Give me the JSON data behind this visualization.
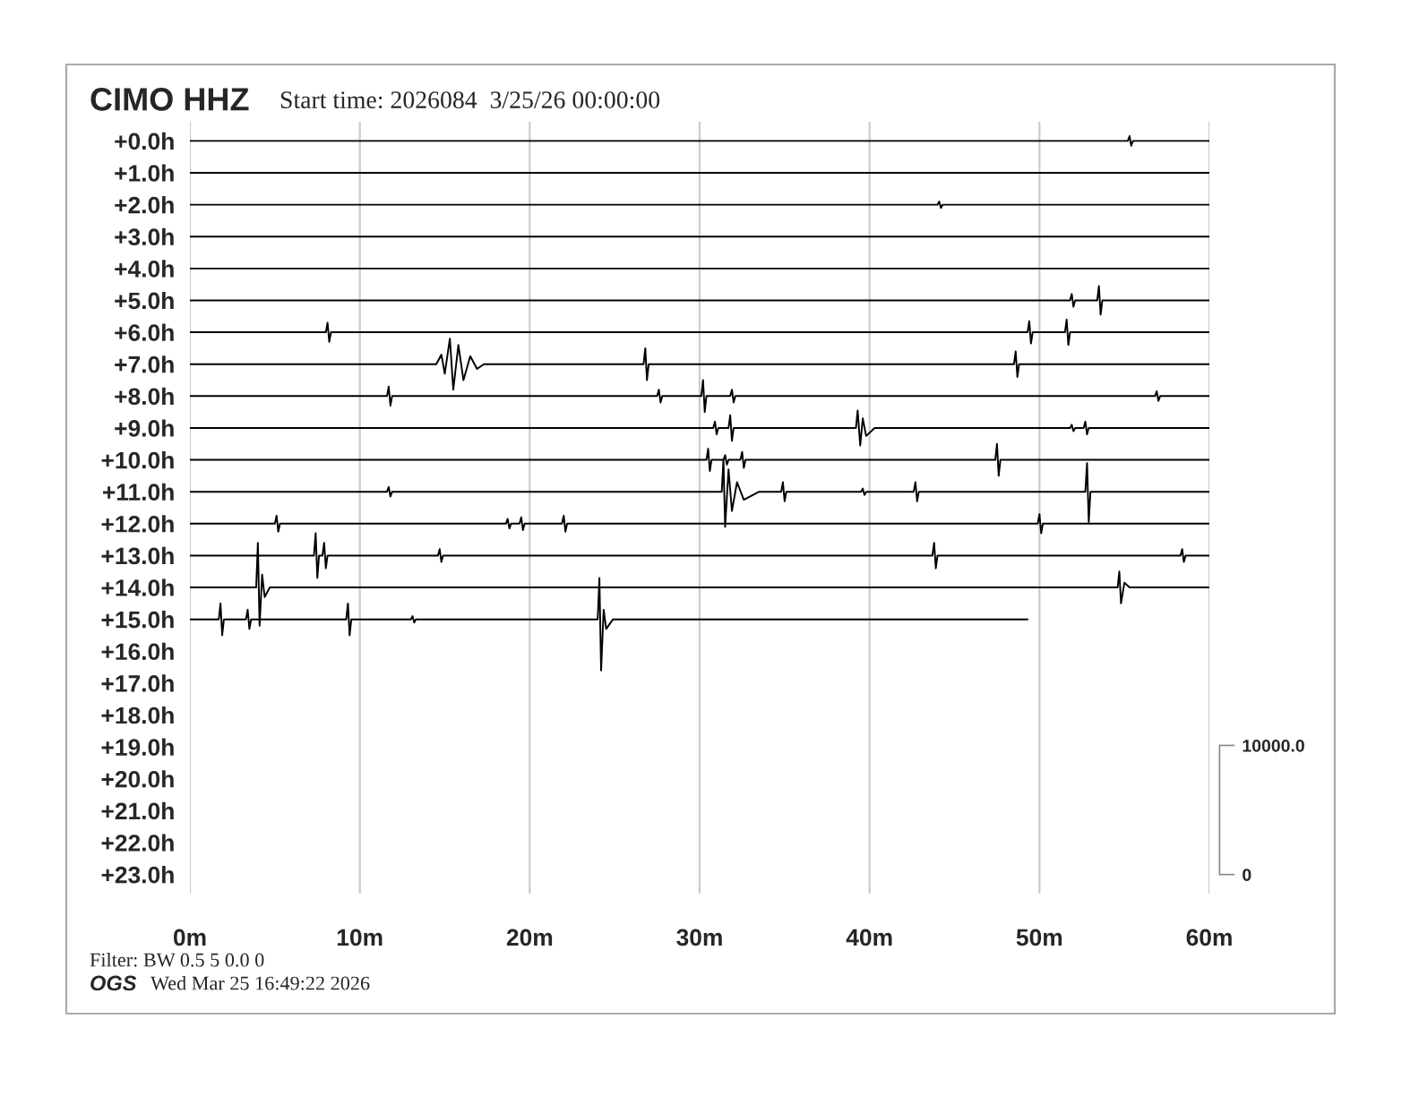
{
  "chart_data": {
    "type": "line",
    "title": "CIMO HHZ",
    "subtitle": "Start time: 2026084  3/25/26 00:00:00",
    "annotations": [
      "Filter: BW 0.5 5 0.0 0",
      "OGS",
      "Wed Mar 25 16:49:22 2026"
    ],
    "xlim": [
      0,
      60
    ],
    "xticks": [
      {
        "value": 0,
        "label": "0m"
      },
      {
        "value": 10,
        "label": "10m"
      },
      {
        "value": 20,
        "label": "20m"
      },
      {
        "value": 30,
        "label": "30m"
      },
      {
        "value": 40,
        "label": "40m"
      },
      {
        "value": 50,
        "label": "50m"
      },
      {
        "value": 60,
        "label": "60m"
      }
    ],
    "ylim": [
      23.6,
      -0.6
    ],
    "yticks": [
      {
        "value": 0,
        "label": "+0.0h"
      },
      {
        "value": 1,
        "label": "+1.0h"
      },
      {
        "value": 2,
        "label": "+2.0h"
      },
      {
        "value": 3,
        "label": "+3.0h"
      },
      {
        "value": 4,
        "label": "+4.0h"
      },
      {
        "value": 5,
        "label": "+5.0h"
      },
      {
        "value": 6,
        "label": "+6.0h"
      },
      {
        "value": 7,
        "label": "+7.0h"
      },
      {
        "value": 8,
        "label": "+8.0h"
      },
      {
        "value": 9,
        "label": "+9.0h"
      },
      {
        "value": 10,
        "label": "+10.0h"
      },
      {
        "value": 11,
        "label": "+11.0h"
      },
      {
        "value": 12,
        "label": "+12.0h"
      },
      {
        "value": 13,
        "label": "+13.0h"
      },
      {
        "value": 14,
        "label": "+14.0h"
      },
      {
        "value": 15,
        "label": "+15.0h"
      },
      {
        "value": 16,
        "label": "+16.0h"
      },
      {
        "value": 17,
        "label": "+17.0h"
      },
      {
        "value": 18,
        "label": "+18.0h"
      },
      {
        "value": 19,
        "label": "+19.0h"
      },
      {
        "value": 20,
        "label": "+20.0h"
      },
      {
        "value": 21,
        "label": "+21.0h"
      },
      {
        "value": 22,
        "label": "+22.0h"
      },
      {
        "value": 23,
        "label": "+23.0h"
      }
    ],
    "y2lim": [
      -1480,
      58300
    ],
    "y2ticks": [
      0,
      {
        "value": 10000,
        "label": "10000.0"
      }
    ],
    "grid": "x",
    "series": [
      {
        "color": "#000000",
        "x": [
          0,
          55.2,
          55.3,
          55.4,
          55.5,
          60
        ],
        "values": [
          0,
          0,
          -0.15,
          0.15,
          0,
          0
        ]
      },
      {
        "color": "#000000",
        "x": [
          0,
          60
        ],
        "values": [
          1,
          1
        ]
      },
      {
        "color": "#000000",
        "x": [
          0,
          44.0,
          44.1,
          44.2,
          44.3,
          60
        ],
        "values": [
          2,
          2,
          1.9,
          2.1,
          2,
          2
        ]
      },
      {
        "color": "#000000",
        "x": [
          0,
          60
        ],
        "values": [
          3,
          3
        ]
      },
      {
        "color": "#000000",
        "x": [
          0,
          60
        ],
        "values": [
          4,
          4
        ]
      },
      {
        "color": "#000000",
        "x": [
          0,
          51.8,
          51.9,
          52.0,
          52.1,
          53.4,
          53.5,
          53.6,
          53.7,
          60
        ],
        "values": [
          5,
          5,
          4.8,
          5.2,
          5,
          5,
          4.55,
          5.45,
          5,
          5
        ]
      },
      {
        "color": "#000000",
        "x": [
          0,
          8.0,
          8.1,
          8.2,
          8.3,
          49.3,
          49.4,
          49.5,
          49.6,
          51.5,
          51.6,
          51.7,
          51.8,
          60
        ],
        "values": [
          6,
          6,
          5.7,
          6.3,
          6,
          6,
          5.65,
          6.35,
          6,
          6,
          5.6,
          6.4,
          6,
          6
        ]
      },
      {
        "color": "#000000",
        "x": [
          0,
          14.5,
          14.8,
          15.0,
          15.3,
          15.5,
          15.8,
          16.1,
          16.5,
          16.9,
          17.3,
          26.7,
          26.8,
          26.9,
          27.0,
          48.5,
          48.6,
          48.7,
          48.8,
          60
        ],
        "values": [
          7,
          7,
          6.7,
          7.3,
          6.2,
          7.8,
          6.4,
          7.5,
          6.75,
          7.15,
          7,
          7,
          6.5,
          7.5,
          7,
          7,
          6.6,
          7.4,
          7,
          7
        ]
      },
      {
        "color": "#000000",
        "x": [
          0,
          11.6,
          11.7,
          11.8,
          11.9,
          27.5,
          27.6,
          27.7,
          27.8,
          30.1,
          30.2,
          30.3,
          30.4,
          31.8,
          31.9,
          32.0,
          32.1,
          56.8,
          56.9,
          57.0,
          57.1,
          60
        ],
        "values": [
          8,
          8,
          7.7,
          8.3,
          8,
          8,
          7.8,
          8.2,
          8,
          8,
          7.5,
          8.5,
          8,
          8,
          7.8,
          8.2,
          8,
          8,
          7.85,
          8.15,
          8,
          8
        ]
      },
      {
        "color": "#000000",
        "x": [
          0,
          30.8,
          30.9,
          31.0,
          31.1,
          31.7,
          31.8,
          31.9,
          32.0,
          39.2,
          39.3,
          39.45,
          39.6,
          39.8,
          40.3,
          51.8,
          51.9,
          52.0,
          52.1,
          52.6,
          52.7,
          52.8,
          52.9,
          60
        ],
        "values": [
          9,
          9,
          8.8,
          9.2,
          9,
          9,
          8.6,
          9.4,
          9,
          9,
          8.45,
          9.55,
          8.7,
          9.25,
          9,
          9,
          8.9,
          9.1,
          9,
          9,
          8.8,
          9.2,
          9,
          9
        ]
      },
      {
        "color": "#000000",
        "x": [
          0,
          30.4,
          30.5,
          30.6,
          30.7,
          31.4,
          31.5,
          31.6,
          31.7,
          32.4,
          32.5,
          32.6,
          32.7,
          47.4,
          47.5,
          47.6,
          47.7,
          60
        ],
        "values": [
          10,
          10,
          9.65,
          10.35,
          10,
          10,
          9.85,
          10.15,
          10,
          10,
          9.75,
          10.25,
          10,
          10,
          9.5,
          10.5,
          10,
          10
        ]
      },
      {
        "color": "#000000",
        "x": [
          0,
          11.6,
          11.7,
          11.8,
          11.9,
          31.3,
          31.4,
          31.5,
          31.7,
          31.9,
          32.2,
          32.6,
          33.5,
          34.8,
          34.9,
          35.0,
          35.1,
          39.5,
          39.6,
          39.7,
          39.8,
          42.6,
          42.7,
          42.8,
          42.9,
          52.7,
          52.8,
          52.9,
          53.0,
          60
        ],
        "values": [
          11,
          11,
          10.85,
          11.15,
          11,
          11,
          10.0,
          12.1,
          10.3,
          11.6,
          10.7,
          11.25,
          11,
          11,
          10.7,
          11.3,
          11,
          11,
          10.9,
          11.1,
          11,
          11,
          10.7,
          11.3,
          11,
          11,
          10.1,
          11.95,
          11,
          11
        ]
      },
      {
        "color": "#000000",
        "x": [
          0,
          5.0,
          5.1,
          5.2,
          5.3,
          18.6,
          18.7,
          18.8,
          18.9,
          19.4,
          19.5,
          19.6,
          19.7,
          21.9,
          22.0,
          22.1,
          22.2,
          49.9,
          50.0,
          50.1,
          50.2,
          60
        ],
        "values": [
          12,
          12,
          11.75,
          12.25,
          12,
          12,
          11.85,
          12.15,
          12,
          12,
          11.8,
          12.2,
          12,
          12,
          11.75,
          12.25,
          12,
          12,
          11.7,
          12.3,
          12,
          12
        ]
      },
      {
        "color": "#000000",
        "x": [
          0,
          7.3,
          7.4,
          7.5,
          7.6,
          7.8,
          7.9,
          8.0,
          8.1,
          14.6,
          14.7,
          14.8,
          14.9,
          43.7,
          43.8,
          43.9,
          44.0,
          58.3,
          58.4,
          58.5,
          58.6,
          60
        ],
        "values": [
          13,
          13,
          12.3,
          13.7,
          13,
          13,
          12.6,
          13.4,
          13,
          13,
          12.8,
          13.2,
          13,
          13,
          12.6,
          13.4,
          13,
          13,
          12.8,
          13.2,
          13,
          13
        ]
      },
      {
        "color": "#000000",
        "x": [
          0,
          3.9,
          4.0,
          4.1,
          4.25,
          4.4,
          4.7,
          54.6,
          54.7,
          54.8,
          55.0,
          55.3,
          60
        ],
        "values": [
          14,
          14,
          12.6,
          15.2,
          13.6,
          14.3,
          14,
          14,
          13.5,
          14.5,
          13.85,
          14,
          14
        ]
      },
      {
        "color": "#000000",
        "x": [
          0,
          1.7,
          1.8,
          1.9,
          2.0,
          3.3,
          3.4,
          3.5,
          3.6,
          9.2,
          9.3,
          9.4,
          9.5,
          13.0,
          13.1,
          13.2,
          13.3,
          24.0,
          24.1,
          24.2,
          24.35,
          24.5,
          24.9,
          49.3
        ],
        "values": [
          15,
          15,
          14.5,
          15.5,
          15,
          15,
          14.7,
          15.3,
          15,
          15,
          14.5,
          15.5,
          15,
          15,
          14.9,
          15.1,
          15,
          15,
          13.7,
          16.6,
          14.7,
          15.3,
          15,
          15
        ]
      }
    ]
  }
}
